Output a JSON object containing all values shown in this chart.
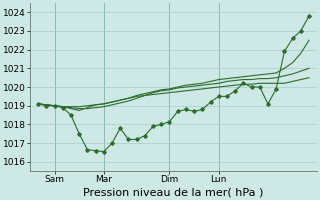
{
  "title": "",
  "xlabel": "Pression niveau de la mer( hPa )",
  "background_color": "#cde8e5",
  "grid_color": "#aaccc8",
  "line_color": "#2d6b2d",
  "ylim": [
    1015.5,
    1024.5
  ],
  "yticks": [
    1016,
    1017,
    1018,
    1019,
    1020,
    1021,
    1022,
    1023,
    1024
  ],
  "xtick_labels": [
    "Sam",
    "Mar",
    "Dim",
    "Lun"
  ],
  "xtick_positions": [
    2,
    8,
    16,
    22
  ],
  "vline_positions": [
    2,
    8,
    16,
    22
  ],
  "series": [
    [
      1019.1,
      1019.0,
      1019.0,
      1018.9,
      1018.5,
      1017.5,
      1016.65,
      1016.6,
      1016.55,
      1017.0,
      1017.8,
      1017.2,
      1017.2,
      1017.4,
      1017.9,
      1018.0,
      1018.15,
      1018.7,
      1018.8,
      1018.7,
      1018.8,
      1019.2,
      1019.5,
      1019.5,
      1019.8,
      1020.2,
      1020.0,
      1020.0,
      1019.1,
      1019.9,
      1021.9,
      1022.6,
      1023.0,
      1023.8
    ],
    [
      1019.1,
      1019.05,
      1019.0,
      1018.95,
      1018.85,
      1018.75,
      1018.9,
      1019.05,
      1019.1,
      1019.2,
      1019.3,
      1019.4,
      1019.55,
      1019.65,
      1019.75,
      1019.85,
      1019.9,
      1020.0,
      1020.1,
      1020.15,
      1020.2,
      1020.3,
      1020.4,
      1020.45,
      1020.5,
      1020.55,
      1020.6,
      1020.65,
      1020.7,
      1020.75,
      1021.0,
      1021.3,
      1021.8,
      1022.5
    ],
    [
      1019.1,
      1019.05,
      1019.0,
      1018.95,
      1018.95,
      1018.95,
      1019.0,
      1019.05,
      1019.1,
      1019.2,
      1019.3,
      1019.4,
      1019.5,
      1019.55,
      1019.6,
      1019.65,
      1019.7,
      1019.75,
      1019.8,
      1019.85,
      1019.9,
      1019.95,
      1020.0,
      1020.05,
      1020.1,
      1020.15,
      1020.15,
      1020.2,
      1020.2,
      1020.2,
      1020.2,
      1020.3,
      1020.4,
      1020.5
    ],
    [
      1019.1,
      1019.05,
      1019.0,
      1018.95,
      1018.9,
      1018.85,
      1018.85,
      1018.9,
      1018.95,
      1019.05,
      1019.15,
      1019.25,
      1019.4,
      1019.55,
      1019.7,
      1019.8,
      1019.85,
      1019.95,
      1020.0,
      1020.05,
      1020.1,
      1020.15,
      1020.2,
      1020.3,
      1020.35,
      1020.4,
      1020.4,
      1020.45,
      1020.45,
      1020.5,
      1020.6,
      1020.7,
      1020.85,
      1021.0
    ]
  ],
  "n_points": 34,
  "figsize": [
    3.2,
    2.0
  ],
  "dpi": 100,
  "font_size_xlabel": 8,
  "tick_fontsize": 6.5
}
